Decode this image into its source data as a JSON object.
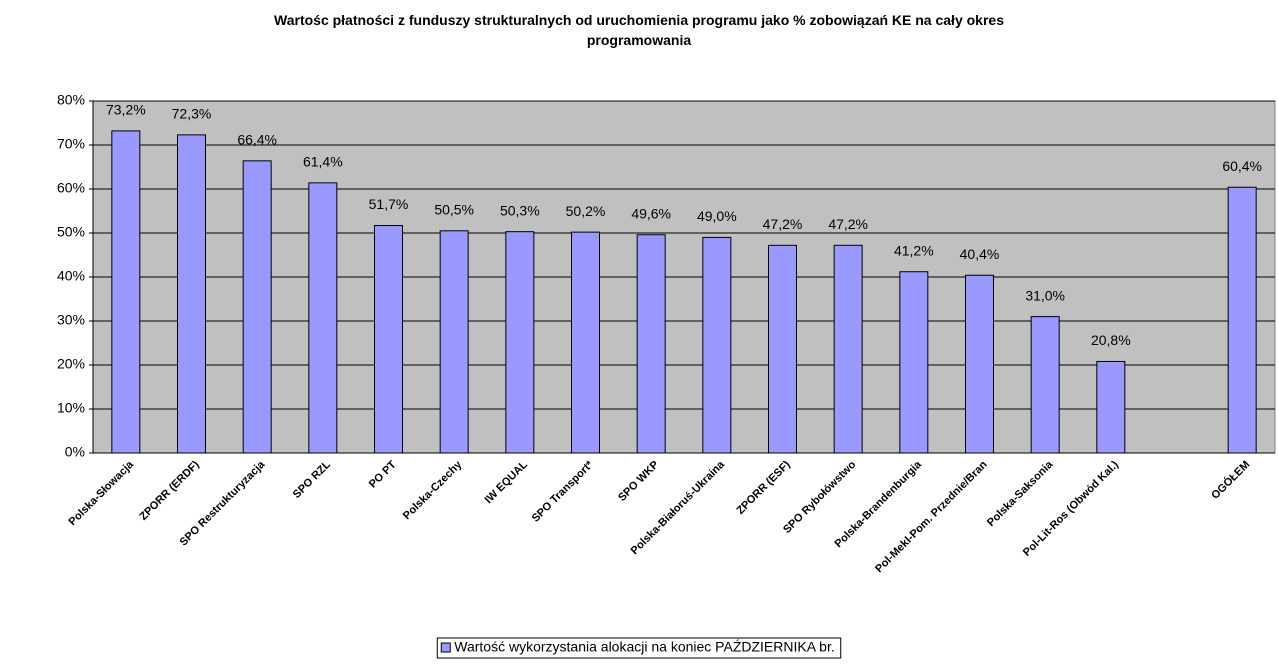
{
  "chart_data": {
    "type": "bar",
    "title": "Wartośc płatności z funduszy strukturalnych od uruchomienia programu jako % zobowiązań KE na cały okres programowania",
    "categories": [
      "Polska-Słowacja",
      "ZPORR (ERDF)",
      "SPO Restrukturyzacja",
      "SPO RZL",
      "PO PT",
      "Polska-Czechy",
      "IW EQUAL",
      "SPO Transport*",
      "SPO WKP",
      "Polska-Białoruś-Ukraina",
      "ZPORR (ESF)",
      "SPO Rybołówstwo",
      "Polska-Brandenburgia",
      "Pol-Mekl-Pom. Przednie/Bran",
      "Polska-Saksonia",
      "Pol-Lit-Ros (Obwód Kal.)",
      null,
      "OGÓŁEM"
    ],
    "series": [
      {
        "name": "Wartość wykorzystania alokacji na koniec PAŹDZIERNIKA br.",
        "color": "#9999ff",
        "values": [
          73.2,
          72.3,
          66.4,
          61.4,
          51.7,
          50.5,
          50.3,
          50.2,
          49.6,
          49.0,
          47.2,
          47.2,
          41.2,
          40.4,
          31.0,
          20.8,
          null,
          60.4
        ],
        "value_labels": [
          "73,2%",
          "72,3%",
          "66,4%",
          "61,4%",
          "51,7%",
          "50,5%",
          "50,3%",
          "50,2%",
          "49,6%",
          "49,0%",
          "47,2%",
          "47,2%",
          "41,2%",
          "40,4%",
          "31,0%",
          "20,8%",
          null,
          "60,4%"
        ]
      }
    ],
    "ylim": [
      0,
      80
    ],
    "yticks": [
      {
        "value": 0,
        "label": "0%"
      },
      {
        "value": 10,
        "label": "10%"
      },
      {
        "value": 20,
        "label": "20%"
      },
      {
        "value": 30,
        "label": "30%"
      },
      {
        "value": 40,
        "label": "40%"
      },
      {
        "value": 50,
        "label": "50%"
      },
      {
        "value": 60,
        "label": "60%"
      },
      {
        "value": 70,
        "label": "70%"
      },
      {
        "value": 80,
        "label": "80%"
      }
    ],
    "grid": true,
    "legend": "bottom"
  }
}
